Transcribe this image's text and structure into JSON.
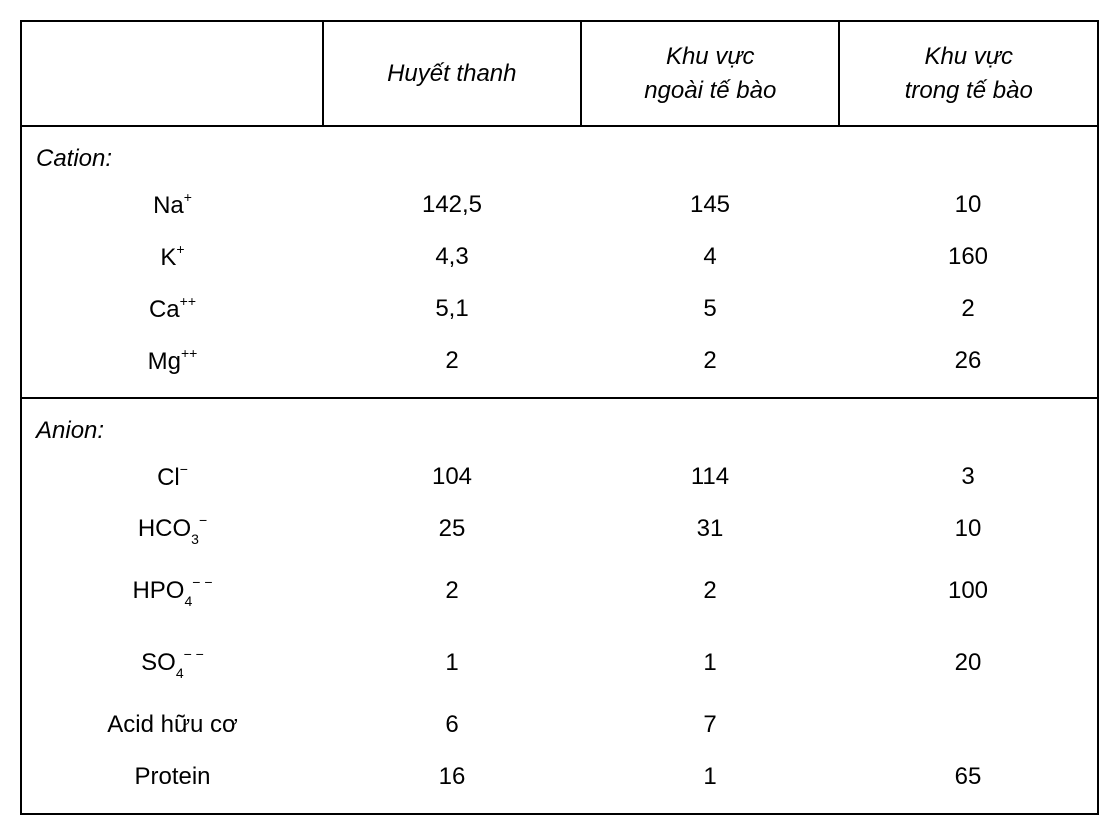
{
  "table": {
    "type": "table",
    "background_color": "#ffffff",
    "border_color": "#000000",
    "border_width": 2,
    "text_color": "#000000",
    "font_family": "Arial",
    "header_fontsize": 24,
    "header_fontstyle": "italic",
    "section_label_fontsize": 24,
    "section_label_fontstyle": "italic",
    "cell_fontsize": 24,
    "column_widths_pct": [
      28,
      24,
      24,
      24
    ],
    "columns": [
      "",
      "Huyết thanh",
      "Khu vực ngoài tế bào",
      "Khu vực trong tế bào"
    ],
    "header_lines": {
      "col1": "",
      "col2": [
        "Huyết thanh"
      ],
      "col3": [
        "Khu vực",
        "ngoài tế bào"
      ],
      "col4": [
        "Khu vực",
        "trong tế bào"
      ]
    },
    "sections": [
      {
        "label": "Cation:",
        "rows": [
          {
            "ion": "Na",
            "charge": "+",
            "sub": "",
            "values": [
              "142,5",
              "145",
              "10"
            ],
            "tall": false
          },
          {
            "ion": "K",
            "charge": "+",
            "sub": "",
            "values": [
              "4,3",
              "4",
              "160"
            ],
            "tall": false
          },
          {
            "ion": "Ca",
            "charge": "++",
            "sub": "",
            "values": [
              "5,1",
              "5",
              "2"
            ],
            "tall": false
          },
          {
            "ion": "Mg",
            "charge": "++",
            "sub": "",
            "values": [
              "2",
              "2",
              "26"
            ],
            "tall": false
          }
        ]
      },
      {
        "label": "Anion:",
        "rows": [
          {
            "ion": "Cl",
            "charge": "−",
            "sub": "",
            "values": [
              "104",
              "114",
              "3"
            ],
            "tall": false
          },
          {
            "ion": "HCO",
            "charge": "−",
            "sub": "3",
            "values": [
              "25",
              "31",
              "10"
            ],
            "tall": false
          },
          {
            "ion": "HPO",
            "charge": "− −",
            "sub": "4",
            "values": [
              "2",
              "2",
              "100"
            ],
            "tall": true
          },
          {
            "ion": "SO",
            "charge": "− −",
            "sub": "4",
            "values": [
              "1",
              "1",
              "20"
            ],
            "tall": true
          },
          {
            "ion": "Acid hữu cơ",
            "charge": "",
            "sub": "",
            "values": [
              "6",
              "7",
              ""
            ],
            "tall": false
          },
          {
            "ion": "Protein",
            "charge": "",
            "sub": "",
            "values": [
              "16",
              "1",
              "65"
            ],
            "tall": false
          }
        ]
      }
    ]
  }
}
